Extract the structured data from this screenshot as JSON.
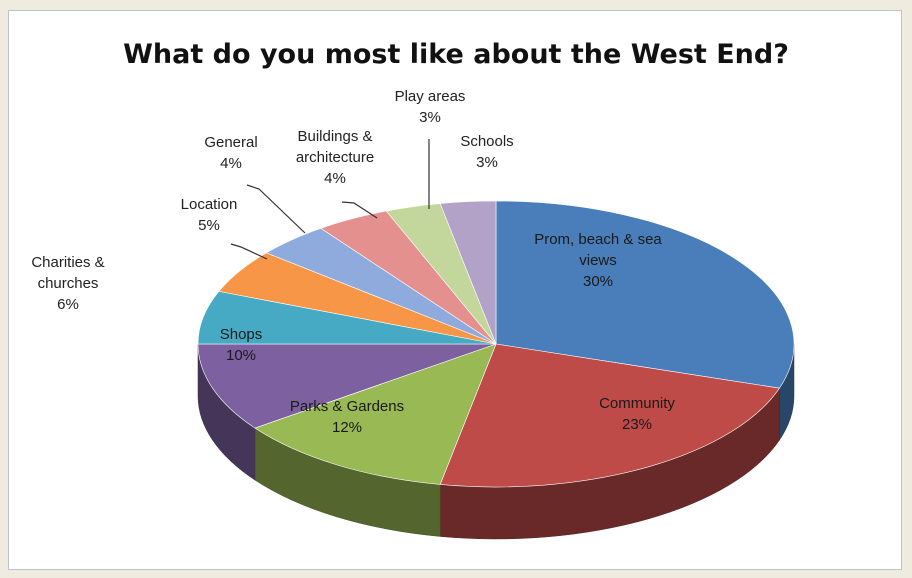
{
  "chart_data": {
    "type": "pie",
    "title": "What do you most like about the West End?",
    "categories": [
      "Prom, beach & sea views",
      "Community",
      "Parks & Gardens",
      "Shops",
      "Charities & churches",
      "Location",
      "General",
      "Buildings & architecture",
      "Play areas",
      "Schools"
    ],
    "values": [
      30,
      23,
      12,
      10,
      6,
      5,
      4,
      4,
      3,
      3
    ],
    "value_labels": [
      "30%",
      "23%",
      "12%",
      "10%",
      "6%",
      "5%",
      "4%",
      "4%",
      "3%",
      "3%"
    ],
    "colors": [
      "#4a7ebb",
      "#be4b48",
      "#98b954",
      "#7d60a0",
      "#46aac5",
      "#f79646",
      "#8faadc",
      "#e4908e",
      "#c3d69b",
      "#b3a2c7"
    ],
    "depth": "3d",
    "legend": "none"
  }
}
